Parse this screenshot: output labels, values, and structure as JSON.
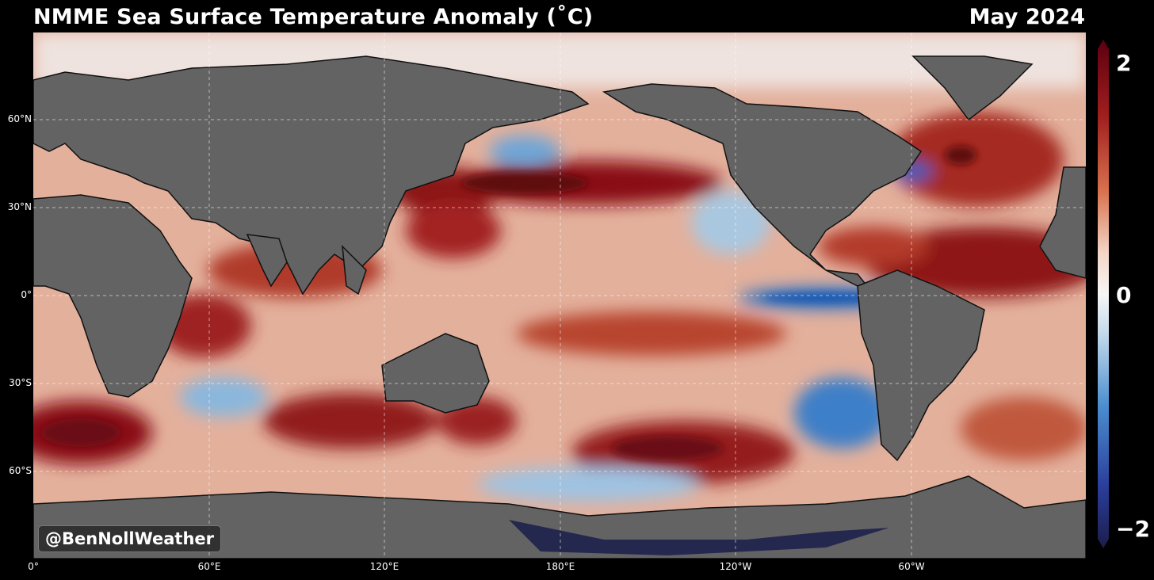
{
  "header": {
    "title": "NMME Sea Surface Temperature Anomaly (˚C)",
    "date": "May 2024"
  },
  "map": {
    "lat_labels": [
      "60°N",
      "30°N",
      "0°",
      "30°S",
      "60°S"
    ],
    "lon_labels": [
      "0°",
      "60°E",
      "120°E",
      "180°E",
      "120°W",
      "60°W"
    ],
    "ocean_base_color": "#e6b8a8",
    "land_color": "#636363",
    "ice_color": "#1a1d4a",
    "warm_color": "#7a0a14",
    "cool_color": "#1f5fb8"
  },
  "colorbar": {
    "max_label": "2",
    "mid_label": "0",
    "min_label": "−2",
    "colors": [
      "#5c0010",
      "#a01e1e",
      "#d8734f",
      "#f4d6c8",
      "#f6f6f6",
      "#c2d9ea",
      "#4b8ed0",
      "#2a3d9a",
      "#1b1d4a"
    ]
  },
  "watermark": {
    "handle": "@BenNollWeather"
  }
}
